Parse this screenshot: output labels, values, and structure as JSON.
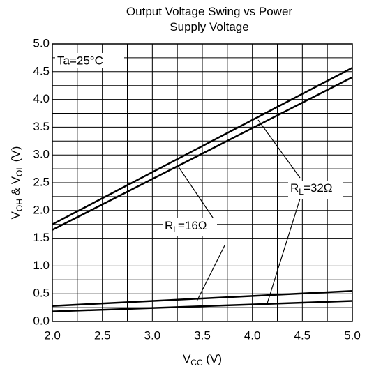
{
  "chart_data": {
    "type": "line",
    "title": "Output Voltage Swing vs Power Supply Voltage",
    "xlabel": [
      "V",
      "CC",
      " (V)"
    ],
    "ylabel": [
      "V",
      "OH",
      " & V",
      "OL",
      " (V)"
    ],
    "x": [
      2,
      5
    ],
    "series": [
      {
        "color": "#000000",
        "values": [
          1.75,
          4.57
        ]
      },
      {
        "color": "#000000",
        "values": [
          1.65,
          4.4
        ]
      },
      {
        "color": "#000000",
        "values": [
          0.28,
          0.55
        ]
      },
      {
        "color": "#000000",
        "values": [
          0.18,
          0.37
        ]
      }
    ],
    "annotations": [
      {
        "text": "Ta=25°C"
      },
      {
        "text": [
          "R",
          "L",
          "=16Ω"
        ]
      },
      {
        "text": [
          "R",
          "L",
          "=32Ω"
        ]
      }
    ],
    "xlim": [
      2,
      5
    ],
    "ylim": [
      0,
      5
    ],
    "xticks": [
      {
        "value": 2,
        "label": "2.0"
      },
      2.5,
      {
        "value": 3,
        "label": "3.0"
      },
      3.5,
      {
        "value": 4,
        "label": "4.0"
      },
      4.5,
      {
        "value": 5,
        "label": "5.0"
      }
    ],
    "yticks": [
      {
        "value": 0,
        "label": "0.0"
      },
      0.5,
      {
        "value": 1,
        "label": "1.0"
      },
      1.5,
      {
        "value": 2,
        "label": "2.0"
      },
      2.5,
      {
        "value": 3,
        "label": "3.0"
      },
      3.5,
      {
        "value": 4,
        "label": "4.0"
      },
      4.5,
      {
        "value": 5,
        "label": "5.0"
      }
    ],
    "grid": true,
    "minor_grid": true
  }
}
